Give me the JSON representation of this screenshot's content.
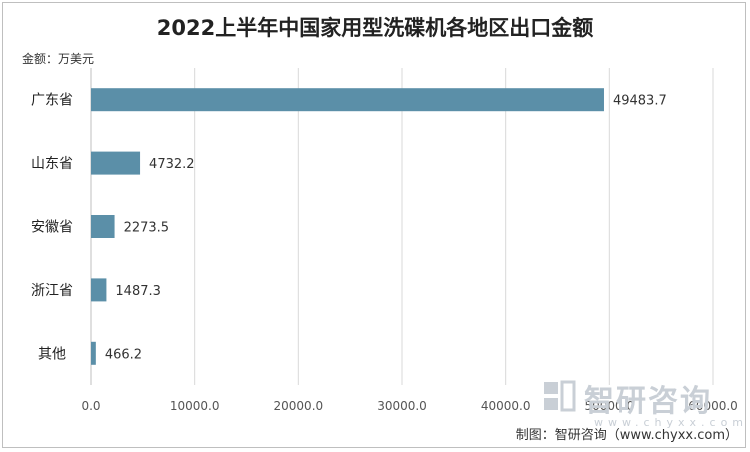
{
  "chart_data": {
    "type": "bar",
    "orientation": "horizontal",
    "title": "2022上半年中国家用型洗碟机各地区出口金额",
    "unit_label": "金额：万美元",
    "categories": [
      "广东省",
      "山东省",
      "安徽省",
      "浙江省",
      "其他"
    ],
    "values": [
      49483.7,
      4732.2,
      2273.5,
      1487.3,
      466.2
    ],
    "value_labels": [
      "49483.7",
      "4732.2",
      "2273.5",
      "1487.3",
      "466.2"
    ],
    "xlim": [
      0,
      60000
    ],
    "x_ticks": [
      "0.0",
      "10000.0",
      "20000.0",
      "30000.0",
      "40000.0",
      "50000.0",
      "60000.0"
    ],
    "bar_color": "#5b8fa8",
    "grid": "vertical"
  },
  "source": "制图：智研咨询（www.chyxx.com）",
  "watermark": {
    "text": "智研咨询",
    "sub": "www.chyxx.com"
  }
}
